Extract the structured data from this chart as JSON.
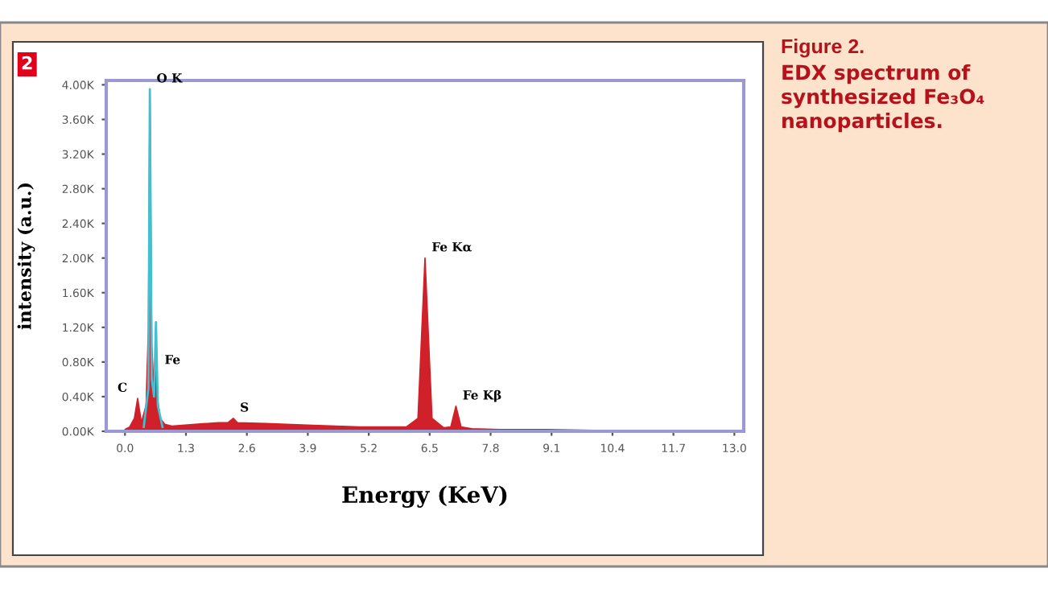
{
  "chart_data": {
    "type": "area",
    "title": "Figure 2.",
    "subtitle": "EDX spectrum of synthesized Fe₃O₄ nanoparticles.",
    "xlabel": "Energy (KeV)",
    "ylabel": "intensity (a.u.)",
    "annotations": [
      "2",
      {
        "text": "C",
        "x": 0.27,
        "y": 0.38
      },
      {
        "text": "O K",
        "x": 0.53,
        "y": 3.95
      },
      {
        "text": "Fe",
        "x": 0.7,
        "y": 0.7
      },
      {
        "text": "S",
        "x": 2.31,
        "y": 0.15
      },
      {
        "text": "Fe Kα",
        "x": 6.4,
        "y": 2.0
      },
      {
        "text": "Fe Kβ",
        "x": 7.06,
        "y": 0.29
      }
    ],
    "series": [
      {
        "color": "#d0202a",
        "x": [
          0.0,
          0.1,
          0.2,
          0.27,
          0.35,
          0.45,
          0.5,
          0.53,
          0.57,
          0.62,
          0.66,
          0.7,
          0.75,
          0.85,
          1.0,
          1.5,
          2.0,
          2.2,
          2.31,
          2.4,
          3.0,
          4.0,
          5.0,
          6.0,
          6.25,
          6.4,
          6.55,
          6.8,
          6.95,
          7.06,
          7.17,
          7.4,
          8.0,
          9.0,
          10.0,
          11.0,
          12.0,
          13.0
        ],
        "values": [
          0.02,
          0.05,
          0.15,
          0.38,
          0.1,
          0.3,
          1.2,
          3.95,
          1.0,
          0.45,
          0.7,
          0.35,
          0.15,
          0.08,
          0.06,
          0.08,
          0.1,
          0.1,
          0.15,
          0.1,
          0.09,
          0.07,
          0.05,
          0.05,
          0.15,
          2.0,
          0.15,
          0.04,
          0.05,
          0.29,
          0.05,
          0.03,
          0.02,
          0.02,
          0.01,
          0.01,
          0.01,
          0.01
        ]
      },
      {
        "type": "line",
        "color": "#40c0d0",
        "x": [
          0.4,
          0.5,
          0.53,
          0.57,
          0.62,
          0.66,
          0.7,
          0.8
        ],
        "values": [
          0.05,
          0.5,
          3.95,
          0.6,
          0.4,
          1.26,
          0.3,
          0.05
        ]
      }
    ],
    "xlim": [
      -0.4,
      13.2
    ],
    "xticks": [
      {
        "value": 0,
        "label": "0.0"
      },
      1.3,
      2.6,
      3.9,
      5.2,
      6.5,
      7.8,
      9.1,
      10.4,
      11.7,
      {
        "value": 13,
        "label": "13.0"
      }
    ],
    "ylim": [
      0,
      4.05
    ],
    "yticks": [
      {
        "value": 0,
        "label": "0.00K"
      },
      {
        "value": 0.4,
        "label": "0.40K"
      },
      {
        "value": 0.8,
        "label": "0.80K"
      },
      {
        "value": 1.2,
        "label": "1.20K"
      },
      {
        "value": 1.6,
        "label": "1.60K"
      },
      {
        "value": 2.0,
        "label": "2.00K"
      },
      {
        "value": 2.4,
        "label": "2.40K"
      },
      {
        "value": 2.8,
        "label": "2.80K"
      },
      {
        "value": 3.2,
        "label": "3.20K"
      },
      {
        "value": 3.6,
        "label": "3.60K"
      },
      {
        "value": 4.0,
        "label": "4.00K"
      }
    ],
    "grid": false,
    "legend": false
  }
}
